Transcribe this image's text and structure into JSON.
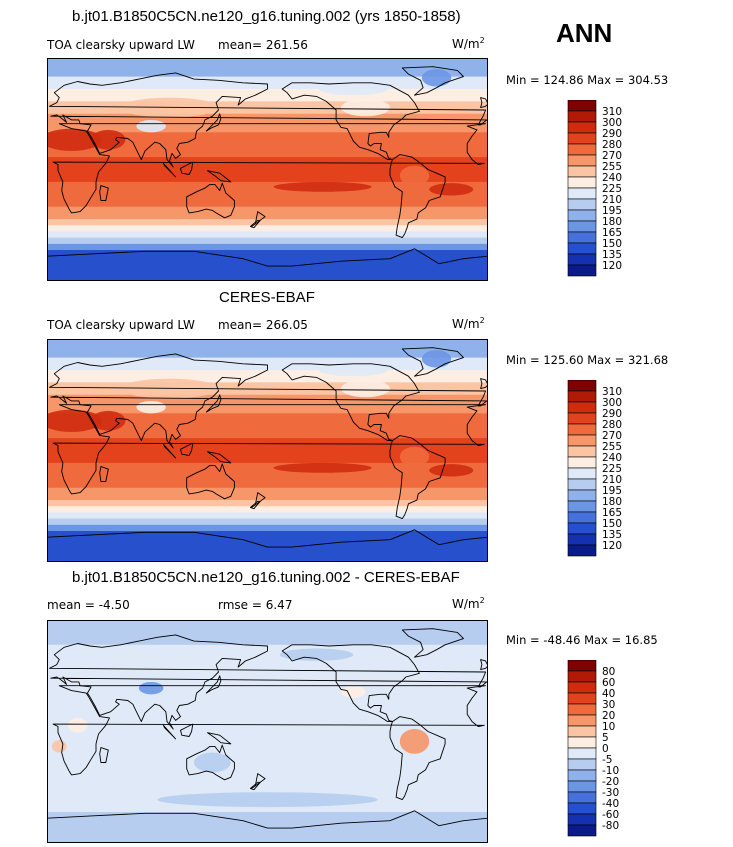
{
  "season": "ANN",
  "units": {
    "base": "W/m",
    "exp": "2"
  },
  "panels": [
    {
      "title": "b.jt01.B1850C5CN.ne120_g16.tuning.002 (yrs 1850-1858)",
      "var_label": "TOA clearsky upward LW",
      "stat1": "mean=  261.56",
      "stat2": "",
      "minmax": "Min = 124.86 Max = 304.53"
    },
    {
      "title": "CERES-EBAF",
      "var_label": "TOA clearsky upward LW",
      "stat1": "mean=  266.05",
      "stat2": "",
      "minmax": "Min = 125.60 Max = 321.68"
    },
    {
      "title": "b.jt01.B1850C5CN.ne120_g16.tuning.002 - CERES-EBAF",
      "var_label": "",
      "stat1": "mean =   -4.50",
      "stat2": "rmse =    6.47",
      "minmax": "Min = -48.46 Max =  16.85"
    }
  ],
  "colorbar_abs": {
    "levels": [
      "310",
      "300",
      "290",
      "280",
      "270",
      "255",
      "240",
      "225",
      "210",
      "195",
      "180",
      "165",
      "150",
      "135",
      "120"
    ],
    "colors": [
      "#7f0000",
      "#b01a06",
      "#cf2c0f",
      "#e4421c",
      "#ef6a3d",
      "#f69669",
      "#fbc4a3",
      "#fdeee4",
      "#dfe9f7",
      "#b6cdf0",
      "#8fb2ea",
      "#6b96e4",
      "#4671db",
      "#2650cc",
      "#1431b2",
      "#0a1a8c"
    ]
  },
  "colorbar_diff": {
    "levels": [
      "80",
      "60",
      "40",
      "30",
      "20",
      "10",
      "5",
      "0",
      "-5",
      "-10",
      "-20",
      "-30",
      "-40",
      "-60",
      "-80"
    ],
    "colors": [
      "#7f0000",
      "#b01a06",
      "#cf2c0f",
      "#e4421c",
      "#ef6a3d",
      "#f69669",
      "#fbc4a3",
      "#fdeee4",
      "#dfe9f7",
      "#b6cdf0",
      "#8fb2ea",
      "#6b96e4",
      "#4671db",
      "#2650cc",
      "#1431b2",
      "#0a1a8c"
    ]
  },
  "chart_data": [
    {
      "type": "heatmap",
      "title": "b.jt01.B1850C5CN.ne120_g16.tuning.002 (yrs 1850-1858)",
      "variable": "TOA clearsky upward LW",
      "units": "W/m2",
      "mean": 261.56,
      "min": 124.86,
      "max": 304.53,
      "levels": [
        120,
        135,
        150,
        165,
        180,
        195,
        210,
        225,
        240,
        255,
        270,
        280,
        290,
        300,
        310
      ]
    },
    {
      "type": "heatmap",
      "title": "CERES-EBAF",
      "variable": "TOA clearsky upward LW",
      "units": "W/m2",
      "mean": 266.05,
      "min": 125.6,
      "max": 321.68,
      "levels": [
        120,
        135,
        150,
        165,
        180,
        195,
        210,
        225,
        240,
        255,
        270,
        280,
        290,
        300,
        310
      ]
    },
    {
      "type": "heatmap",
      "title": "b.jt01.B1850C5CN.ne120_g16.tuning.002 - CERES-EBAF",
      "units": "W/m2",
      "mean": -4.5,
      "rmse": 6.47,
      "min": -48.46,
      "max": 16.85,
      "levels": [
        -80,
        -60,
        -40,
        -30,
        -20,
        -10,
        -5,
        0,
        5,
        10,
        20,
        30,
        40,
        60,
        80
      ]
    }
  ]
}
